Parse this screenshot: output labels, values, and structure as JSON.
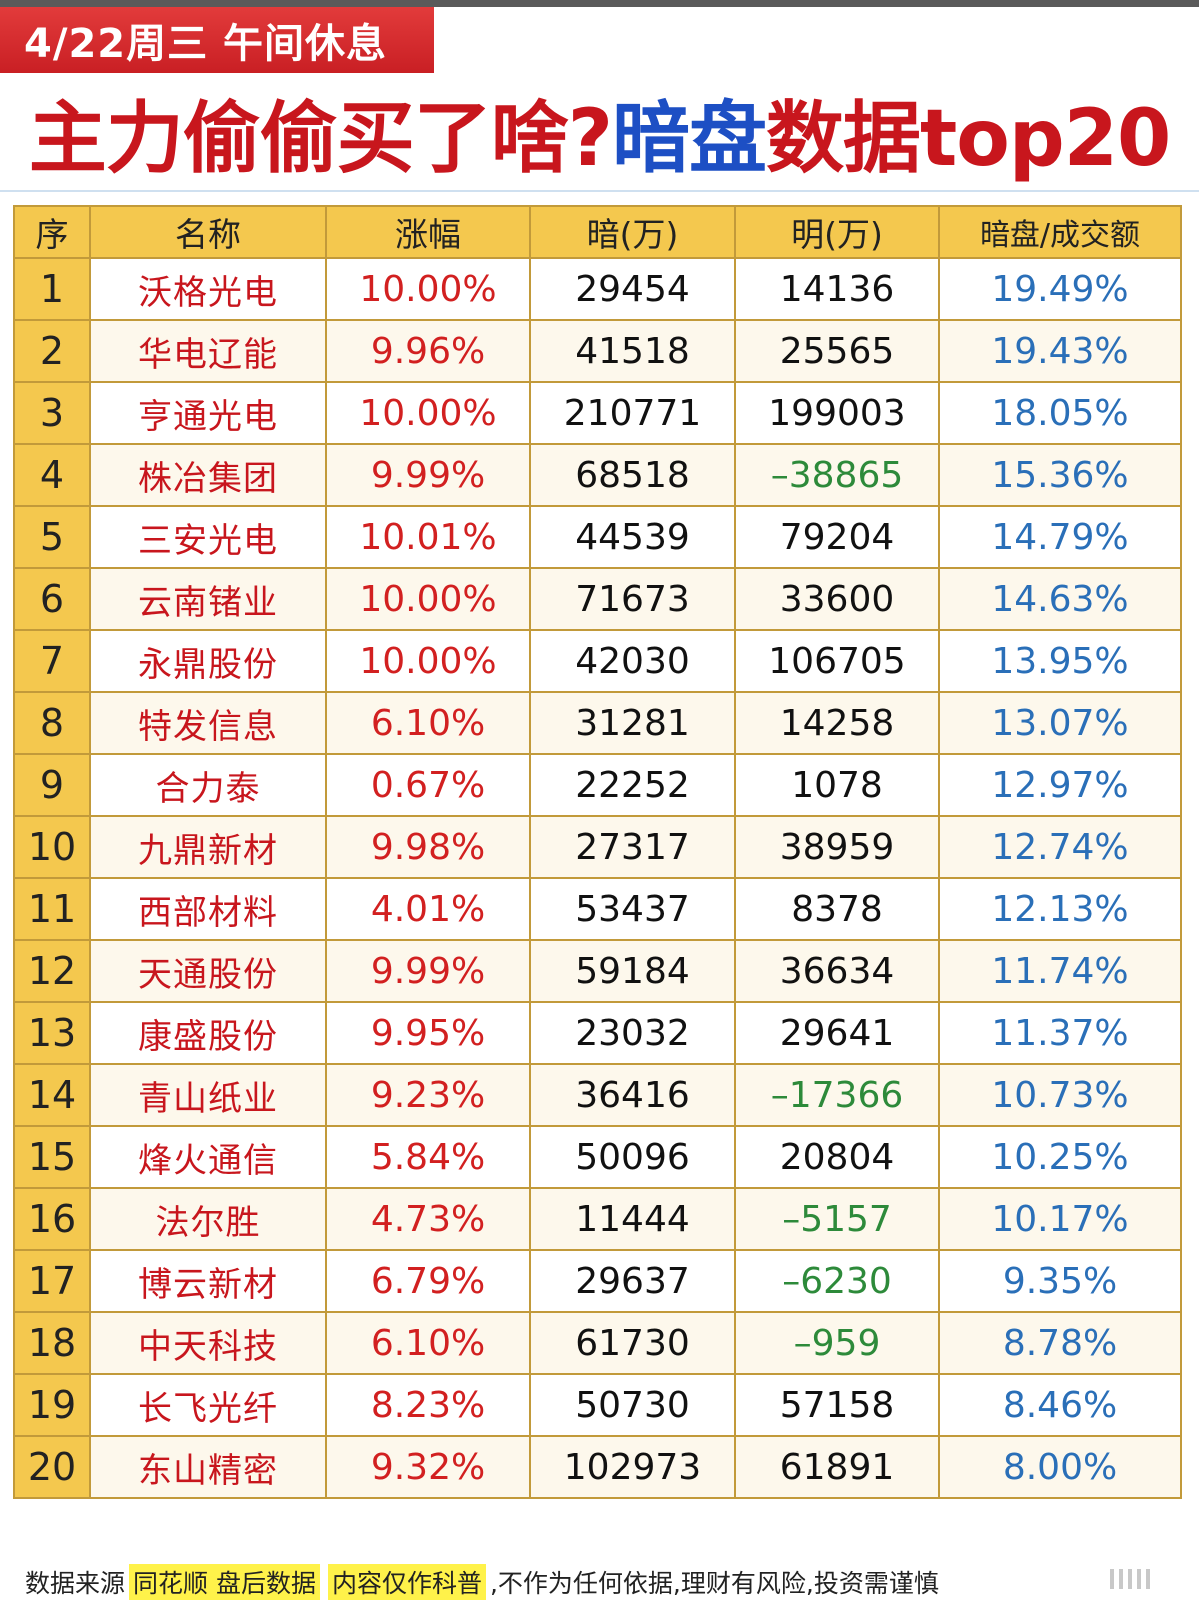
{
  "banner": {
    "date": "4/22周三 午间休息"
  },
  "headline": {
    "part1": "主力偷偷买了啥?",
    "part2": "暗盘",
    "part3": "数据top20"
  },
  "table": {
    "headers": {
      "rank": "序",
      "name": "名称",
      "change": "涨幅",
      "dark": "暗(万)",
      "lit": "明(万)",
      "ratio": "暗盘/成交额"
    },
    "rows": [
      {
        "rank": "1",
        "name": "沃格光电",
        "change": "10.00%",
        "dark": "29454",
        "lit": "14136",
        "ratio": "19.49%"
      },
      {
        "rank": "2",
        "name": "华电辽能",
        "change": "9.96%",
        "dark": "41518",
        "lit": "25565",
        "ratio": "19.43%"
      },
      {
        "rank": "3",
        "name": "亨通光电",
        "change": "10.00%",
        "dark": "210771",
        "lit": "199003",
        "ratio": "18.05%"
      },
      {
        "rank": "4",
        "name": "株冶集团",
        "change": "9.99%",
        "dark": "68518",
        "lit": "-38865",
        "ratio": "15.36%"
      },
      {
        "rank": "5",
        "name": "三安光电",
        "change": "10.01%",
        "dark": "44539",
        "lit": "79204",
        "ratio": "14.79%"
      },
      {
        "rank": "6",
        "name": "云南锗业",
        "change": "10.00%",
        "dark": "71673",
        "lit": "33600",
        "ratio": "14.63%"
      },
      {
        "rank": "7",
        "name": "永鼎股份",
        "change": "10.00%",
        "dark": "42030",
        "lit": "106705",
        "ratio": "13.95%"
      },
      {
        "rank": "8",
        "name": "特发信息",
        "change": "6.10%",
        "dark": "31281",
        "lit": "14258",
        "ratio": "13.07%"
      },
      {
        "rank": "9",
        "name": "合力泰",
        "change": "0.67%",
        "dark": "22252",
        "lit": "1078",
        "ratio": "12.97%"
      },
      {
        "rank": "10",
        "name": "九鼎新材",
        "change": "9.98%",
        "dark": "27317",
        "lit": "38959",
        "ratio": "12.74%"
      },
      {
        "rank": "11",
        "name": "西部材料",
        "change": "4.01%",
        "dark": "53437",
        "lit": "8378",
        "ratio": "12.13%"
      },
      {
        "rank": "12",
        "name": "天通股份",
        "change": "9.99%",
        "dark": "59184",
        "lit": "36634",
        "ratio": "11.74%"
      },
      {
        "rank": "13",
        "name": "康盛股份",
        "change": "9.95%",
        "dark": "23032",
        "lit": "29641",
        "ratio": "11.37%"
      },
      {
        "rank": "14",
        "name": "青山纸业",
        "change": "9.23%",
        "dark": "36416",
        "lit": "-17366",
        "ratio": "10.73%"
      },
      {
        "rank": "15",
        "name": "烽火通信",
        "change": "5.84%",
        "dark": "50096",
        "lit": "20804",
        "ratio": "10.25%"
      },
      {
        "rank": "16",
        "name": "法尔胜",
        "change": "4.73%",
        "dark": "11444",
        "lit": "-5157",
        "ratio": "10.17%"
      },
      {
        "rank": "17",
        "name": "博云新材",
        "change": "6.79%",
        "dark": "29637",
        "lit": "-6230",
        "ratio": "9.35%"
      },
      {
        "rank": "18",
        "name": "中天科技",
        "change": "6.10%",
        "dark": "61730",
        "lit": "-959",
        "ratio": "8.78%"
      },
      {
        "rank": "19",
        "name": "长飞光纤",
        "change": "8.23%",
        "dark": "50730",
        "lit": "57158",
        "ratio": "8.46%"
      },
      {
        "rank": "20",
        "name": "东山精密",
        "change": "9.32%",
        "dark": "102973",
        "lit": "61891",
        "ratio": "8.00%"
      }
    ]
  },
  "footer": {
    "prefix": "数据来源",
    "source": "同花顺 盘后数据",
    "note": "内容仅作科普",
    "disclaimer": ",不作为任何依据,理财有风险,投资需谨慎"
  },
  "colors": {
    "name": "#c8161d",
    "change": "#d22020",
    "ratio": "#2a6fb8",
    "negative": "#2d8a3a",
    "header_bg": "#f4c84e"
  }
}
